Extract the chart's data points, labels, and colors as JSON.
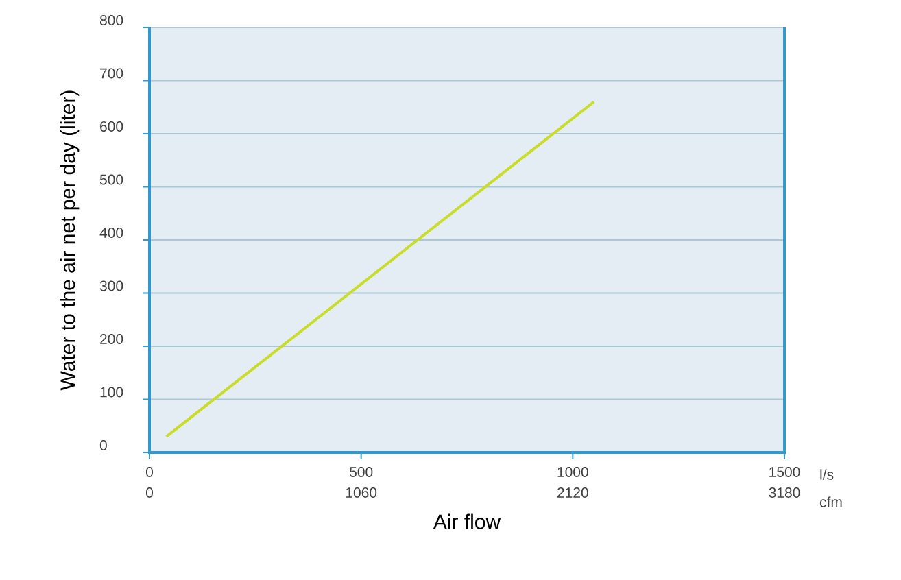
{
  "chart_data": {
    "type": "line",
    "xlabel": "Air flow",
    "ylabel": "Water to the air net per day (liter)",
    "x2label": "cfm",
    "annotations": [
      "l/s"
    ],
    "xlim": [
      0,
      1500
    ],
    "xticks": [
      0,
      500,
      1000,
      1500
    ],
    "x2lim": [
      0,
      3180
    ],
    "x2ticks": [
      0,
      1060,
      2120,
      3180
    ],
    "ylim": [
      0,
      800
    ],
    "yticks": [
      0,
      100,
      200,
      300,
      400,
      500,
      600,
      700,
      800
    ],
    "grid": "y",
    "series": [
      {
        "color": "#c8dc28",
        "x": [
          40,
          1050
        ],
        "values": [
          30,
          660
        ]
      }
    ]
  }
}
